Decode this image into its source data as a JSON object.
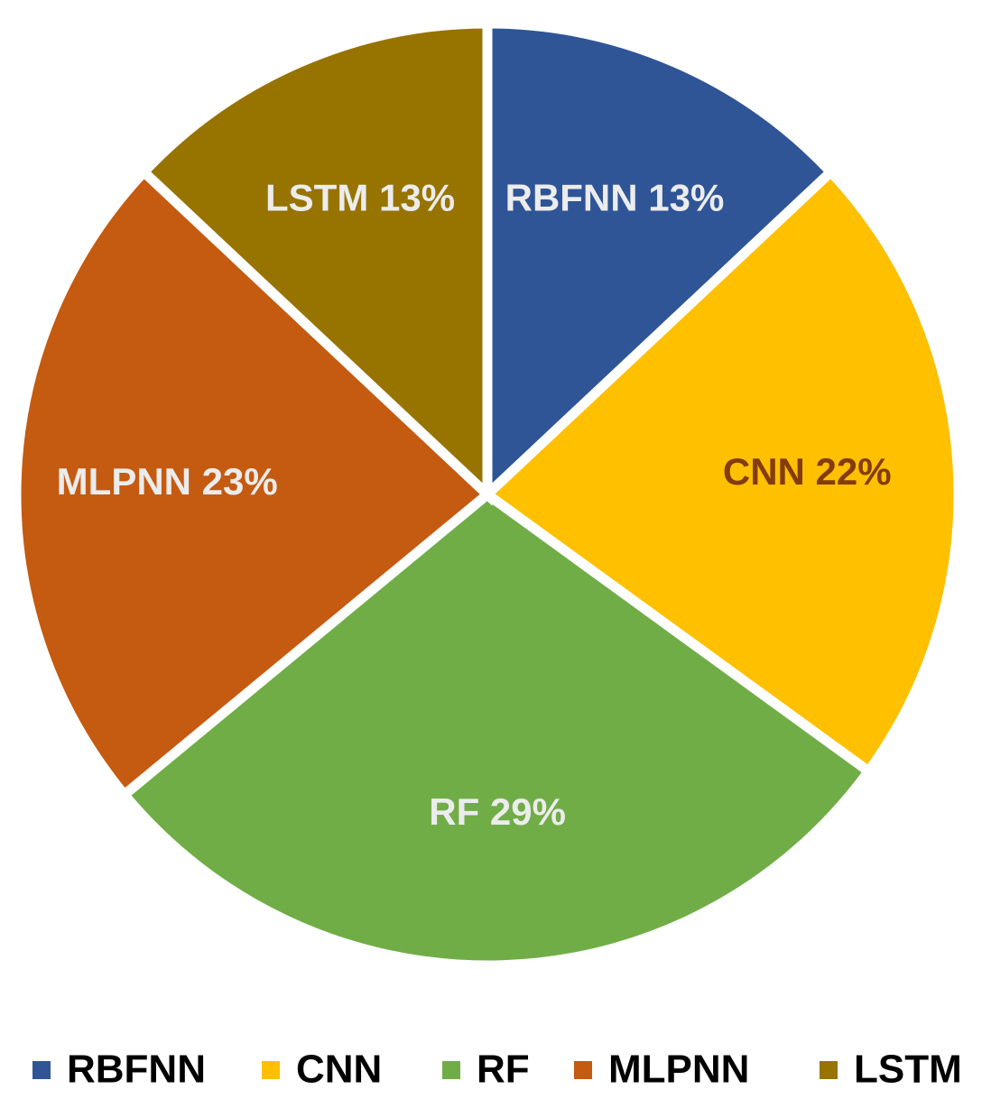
{
  "chart_data": {
    "type": "pie",
    "categories": [
      "RBFNN",
      "CNN",
      "RF",
      "MLPNN",
      "LSTM"
    ],
    "values": [
      13,
      22,
      29,
      23,
      13
    ],
    "value_labels": [
      "RBFNN 13%",
      "CNN 22%",
      "RF 29%",
      "MLPNN 23%",
      "LSTM 13%"
    ],
    "colors": [
      "#2f5597",
      "#ffc000",
      "#70ad47",
      "#c55a11",
      "#977300"
    ],
    "value_label_colors": [
      "#ececec",
      "#843c0c",
      "#ececec",
      "#ececec",
      "#ececec"
    ],
    "legend": "bottom"
  }
}
